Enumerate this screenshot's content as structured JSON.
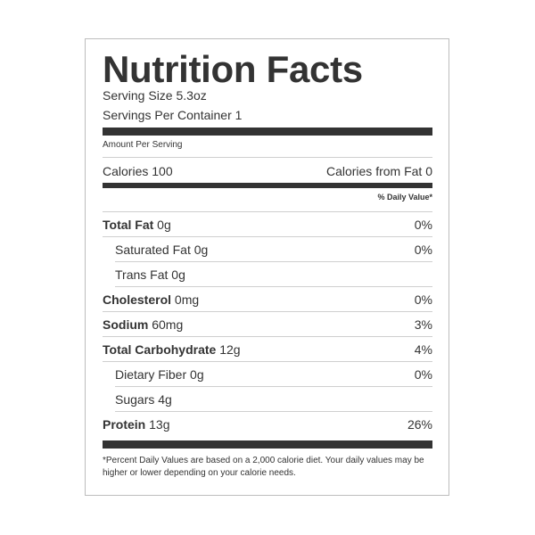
{
  "label": {
    "title": "Nutrition Facts",
    "serving_size": "Serving Size 5.3oz",
    "servings_per_container": "Servings Per Container 1",
    "amount_per_serving": "Amount Per Serving",
    "calories": "Calories 100",
    "calories_from_fat": "Calories from Fat 0",
    "daily_value_header": "% Daily Value*",
    "nutrients": [
      {
        "name": "Total Fat",
        "amount": " 0g",
        "dv": "0%",
        "bold": true,
        "indent": false
      },
      {
        "name": "Saturated Fat",
        "amount": " 0g",
        "dv": "0%",
        "bold": false,
        "indent": true
      },
      {
        "name": "Trans Fat",
        "amount": " 0g",
        "dv": "",
        "bold": false,
        "indent": true
      },
      {
        "name": "Cholesterol",
        "amount": " 0mg",
        "dv": "0%",
        "bold": true,
        "indent": false
      },
      {
        "name": "Sodium",
        "amount": " 60mg",
        "dv": "3%",
        "bold": true,
        "indent": false
      },
      {
        "name": "Total Carbohydrate",
        "amount": " 12g",
        "dv": "4%",
        "bold": true,
        "indent": false
      },
      {
        "name": "Dietary Fiber",
        "amount": " 0g",
        "dv": "0%",
        "bold": false,
        "indent": true
      },
      {
        "name": "Sugars",
        "amount": " 4g",
        "dv": "",
        "bold": false,
        "indent": true
      },
      {
        "name": "Protein",
        "amount": " 13g",
        "dv": "26%",
        "bold": true,
        "indent": false
      }
    ],
    "footnote": "*Percent Daily Values are based on a 2,000 calorie diet. Your daily values may be higher or lower depending on your calorie needs."
  },
  "colors": {
    "text": "#333333",
    "rule": "#333333",
    "border": "#bdbdbd"
  }
}
